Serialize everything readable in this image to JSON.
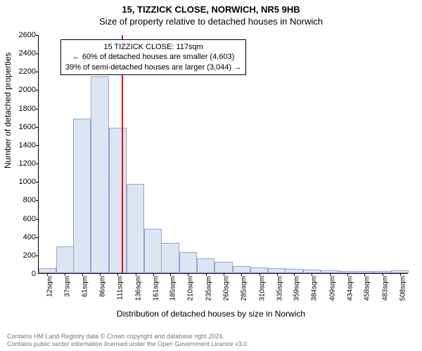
{
  "title_main": "15, TIZZICK CLOSE, NORWICH, NR5 9HB",
  "title_sub": "Size of property relative to detached houses in Norwich",
  "ylabel": "Number of detached properties",
  "xlabel": "Distribution of detached houses by size in Norwich",
  "footer_line1": "Contains HM Land Registry data © Crown copyright and database right 2024.",
  "footer_line2": "Contains public sector information licensed under the Open Government Licence v3.0.",
  "chart": {
    "type": "histogram",
    "ylim_max": 2600,
    "ytick_step": 200,
    "bar_fill": "#dde4f2",
    "bar_stroke": "#8fa6d3",
    "grid_color": "#e0e0e0",
    "marker_color": "#ff0000",
    "marker_value": 117,
    "x_min": 0,
    "x_max": 520,
    "bars": [
      {
        "center": 12,
        "value": 55
      },
      {
        "center": 37,
        "value": 290
      },
      {
        "center": 61,
        "value": 1680
      },
      {
        "center": 86,
        "value": 2140
      },
      {
        "center": 111,
        "value": 1580
      },
      {
        "center": 136,
        "value": 970
      },
      {
        "center": 161,
        "value": 480
      },
      {
        "center": 185,
        "value": 330
      },
      {
        "center": 210,
        "value": 230
      },
      {
        "center": 235,
        "value": 160
      },
      {
        "center": 260,
        "value": 120
      },
      {
        "center": 285,
        "value": 80
      },
      {
        "center": 310,
        "value": 60
      },
      {
        "center": 335,
        "value": 55
      },
      {
        "center": 359,
        "value": 45
      },
      {
        "center": 384,
        "value": 35
      },
      {
        "center": 409,
        "value": 30
      },
      {
        "center": 434,
        "value": 25
      },
      {
        "center": 458,
        "value": 25
      },
      {
        "center": 483,
        "value": 25
      },
      {
        "center": 508,
        "value": 30
      }
    ],
    "xticks": [
      "12sqm",
      "37sqm",
      "61sqm",
      "86sqm",
      "111sqm",
      "136sqm",
      "161sqm",
      "185sqm",
      "210sqm",
      "235sqm",
      "260sqm",
      "285sqm",
      "310sqm",
      "335sqm",
      "359sqm",
      "384sqm",
      "409sqm",
      "434sqm",
      "458sqm",
      "483sqm",
      "508sqm"
    ]
  },
  "annotation": {
    "line1": "15 TIZZICK CLOSE: 117sqm",
    "line2": "← 60% of detached houses are smaller (4,603)",
    "line3": "39% of semi-detached houses are larger (3,044) →"
  }
}
